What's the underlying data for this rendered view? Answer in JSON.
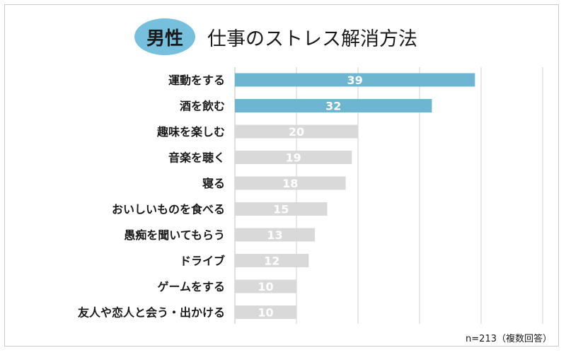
{
  "header": {
    "badge": "男性",
    "title": "仕事のストレス解消方法"
  },
  "note": "n=213（複数回答）",
  "colors": {
    "highlight": "#6db5d0",
    "normal": "#d9d9d9",
    "badge": "#76c0de",
    "grid": "#d0d0d0"
  },
  "chart_data": {
    "type": "bar",
    "orientation": "horizontal",
    "title": "仕事のストレス解消方法",
    "categories": [
      "運動をする",
      "酒を飲む",
      "趣味を楽しむ",
      "音楽を聴く",
      "寝る",
      "おいしいものを食べる",
      "愚痴を聞いてもらう",
      "ドライブ",
      "ゲームをする",
      "友人や恋人と会う・出かける"
    ],
    "values": [
      39,
      32,
      20,
      19,
      18,
      15,
      13,
      12,
      10,
      10
    ],
    "highlighted": [
      true,
      true,
      false,
      false,
      false,
      false,
      false,
      false,
      false,
      false
    ],
    "xlim": [
      0,
      50
    ],
    "grid": true
  }
}
